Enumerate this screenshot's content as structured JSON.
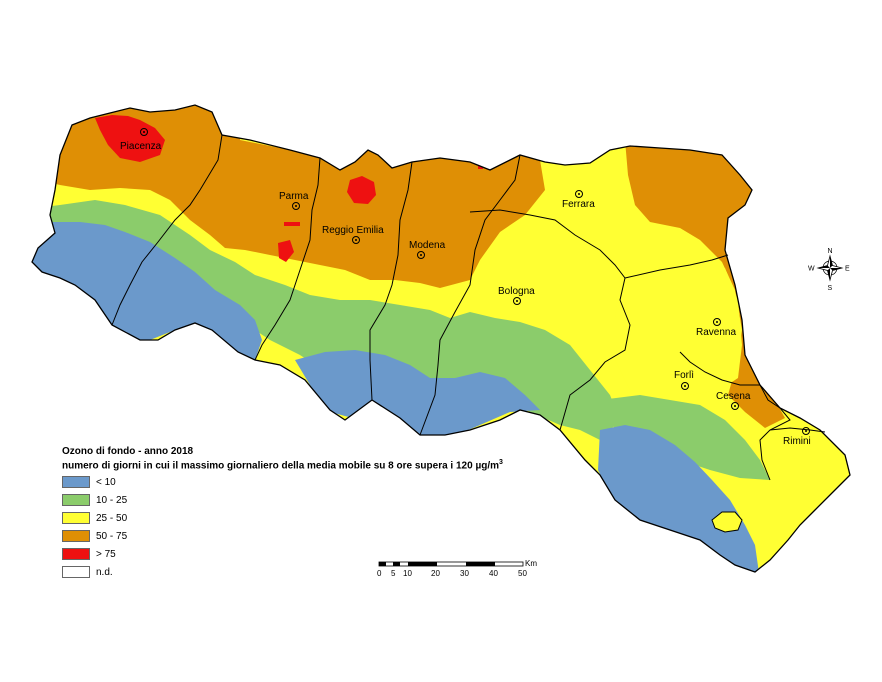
{
  "legend": {
    "title_line1": "Ozono di fondo - anno 2018",
    "title_line2": "numero di giorni in cui il massimo giornaliero della media mobile su 8 ore supera i 120 µg/m",
    "title_sup": "3",
    "classes": [
      {
        "label": "< 10",
        "color": "#6b99cb"
      },
      {
        "label": "10 - 25",
        "color": "#8bcc6b"
      },
      {
        "label": "25 - 50",
        "color": "#ffff33"
      },
      {
        "label": "50 - 75",
        "color": "#df8f05"
      },
      {
        "label": "> 75",
        "color": "#ee1111"
      },
      {
        "label": "n.d.",
        "color": "#ffffff"
      }
    ]
  },
  "cities": [
    {
      "id": "piacenza",
      "name": "Piacenza"
    },
    {
      "id": "parma",
      "name": "Parma"
    },
    {
      "id": "reggio-emilia",
      "name": "Reggio Emilia"
    },
    {
      "id": "modena",
      "name": "Modena"
    },
    {
      "id": "bologna",
      "name": "Bologna"
    },
    {
      "id": "ferrara",
      "name": "Ferrara"
    },
    {
      "id": "ravenna",
      "name": "Ravenna"
    },
    {
      "id": "forli",
      "name": "Forlì"
    },
    {
      "id": "cesena",
      "name": "Cesena"
    },
    {
      "id": "rimini",
      "name": "Rimini"
    }
  ],
  "compass": {
    "n": "N",
    "s": "S",
    "e": "E",
    "w": "W"
  },
  "scale_bar": {
    "unit": "Km",
    "ticks": [
      "0",
      "5",
      "10",
      "20",
      "30",
      "40",
      "50"
    ]
  }
}
